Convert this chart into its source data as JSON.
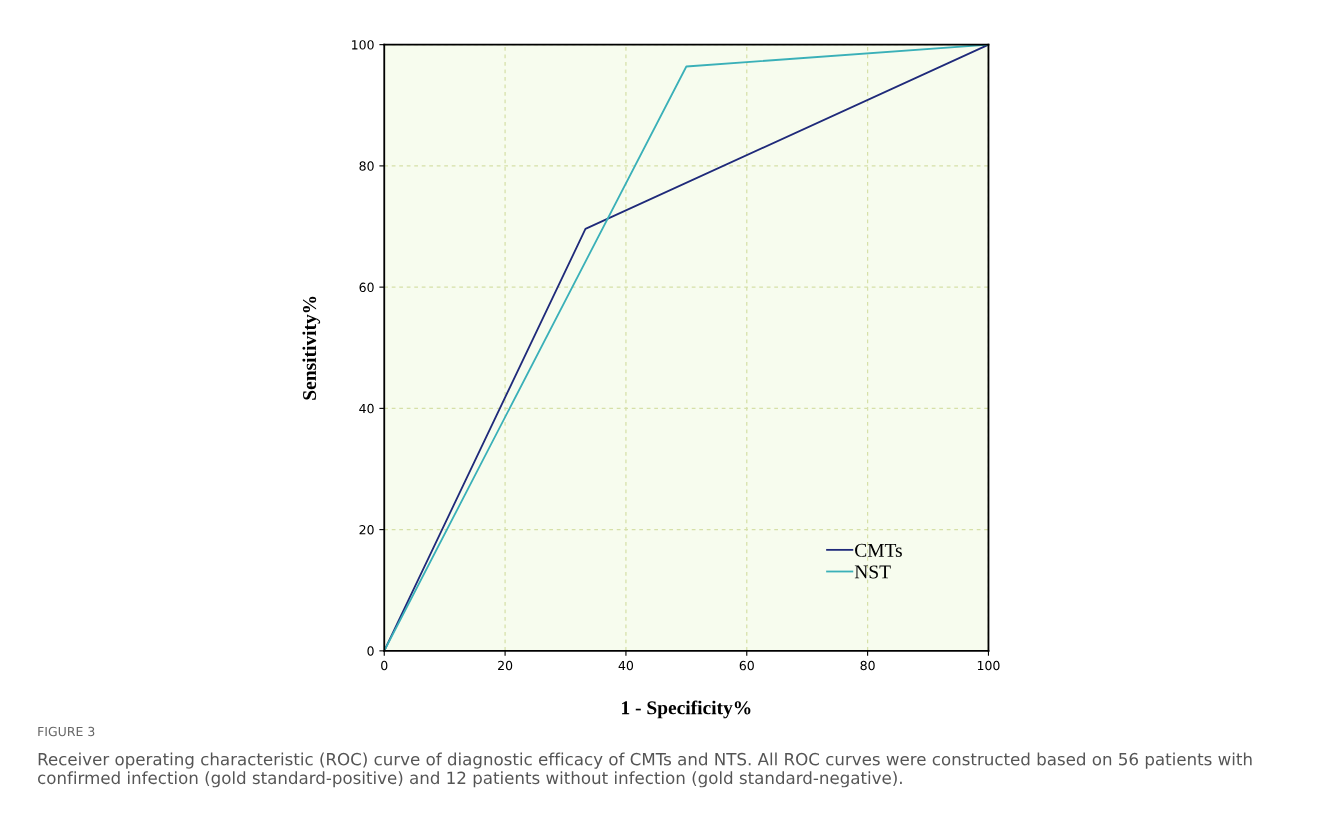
{
  "chart_data": {
    "type": "line",
    "title": "FIGURE 3",
    "xlabel": "1 - Specificity%",
    "ylabel": "Sensitivity%",
    "annotations": [
      "Receiver operating characteristic (ROC) curve of diagnostic efficacy of CMTs and NTS. All ROC curves were constructed based on 56 patients with confirmed infection (gold standard-positive) and 12 patients without infection (gold standard-negative)."
    ],
    "series": [
      {
        "name": "CMTs",
        "color": "#1f2a7a",
        "x": [
          0,
          33.3,
          100
        ],
        "values": [
          0,
          69.6,
          100
        ]
      },
      {
        "name": "NST",
        "color": "#3ab0b8",
        "x": [
          0,
          50,
          100
        ],
        "values": [
          0,
          96.4,
          100
        ]
      }
    ],
    "xlim": [
      0,
      100
    ],
    "ylim": [
      0,
      100
    ],
    "xticks": [
      0,
      20,
      40,
      60,
      80,
      100
    ],
    "yticks": [
      0,
      20,
      40,
      60,
      80,
      100
    ],
    "grid": true,
    "legend": "bottom right",
    "marker": "none",
    "line_style": "solid"
  }
}
